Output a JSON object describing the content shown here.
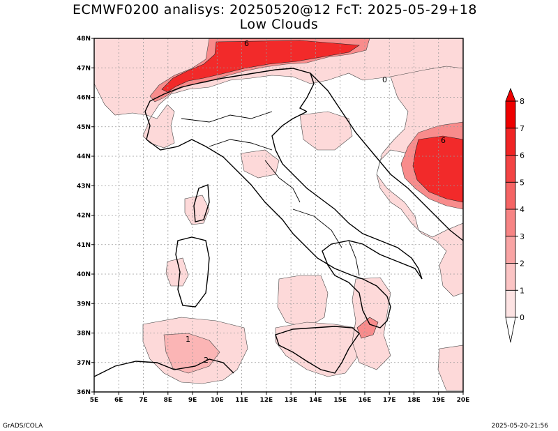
{
  "title": {
    "line1": "ECMWF0200 analisys: 20250520@12 FcT: 2025-05-29+18",
    "line2": "Low Clouds"
  },
  "footer": {
    "left": "GrADS/COLA",
    "right": "2025-05-20-21:56"
  },
  "map": {
    "lon_range": [
      5,
      20
    ],
    "lat_range": [
      36,
      48
    ],
    "lon_ticks": [
      "5E",
      "6E",
      "7E",
      "8E",
      "9E",
      "10E",
      "11E",
      "12E",
      "13E",
      "14E",
      "15E",
      "16E",
      "17E",
      "18E",
      "19E",
      "20E"
    ],
    "lat_ticks": [
      "36N",
      "37N",
      "38N",
      "39N",
      "40N",
      "41N",
      "42N",
      "43N",
      "44N",
      "45N",
      "46N",
      "47N",
      "48N"
    ],
    "grid": "dotted",
    "colors": {
      "level1": "#fdd9d9",
      "level2": "#fbb5b5",
      "level3": "#f88c8c",
      "level5": "#f55c5c",
      "level7": "#f22a2a",
      "level8": "#f00c0c",
      "coast": "#000000"
    },
    "cloud_labels": [
      "1",
      "2",
      "0",
      "6"
    ]
  },
  "colorbar": {
    "levels": [
      "0",
      "1",
      "2",
      "3",
      "4",
      "5",
      "6",
      "7",
      "8"
    ],
    "colors": [
      "#ffffff",
      "#fde3e3",
      "#fbc4c4",
      "#f9a4a4",
      "#f78484",
      "#f56464",
      "#f34444",
      "#f02424",
      "#ee0000"
    ]
  }
}
